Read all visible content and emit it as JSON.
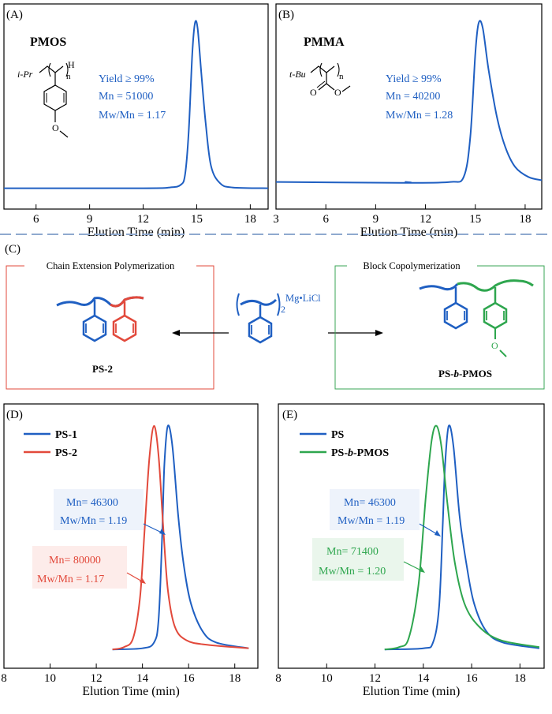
{
  "panel_labels": {
    "a": "(A)",
    "b": "(B)",
    "c": "(C)",
    "d": "(D)",
    "e": "(E)"
  },
  "colors": {
    "blue": "#1f5fc2",
    "red": "#e2493b",
    "green": "#2ea64e",
    "blue_box": "#eef3fb",
    "red_box": "#fdecea",
    "green_box": "#eaf6ec",
    "divider": "#8fa9cf",
    "red_frame": "#e2493b",
    "green_frame": "#3aa655"
  },
  "chart_data": [
    {
      "type": "line",
      "panel": "A",
      "xlabel": "Elution Time (min)",
      "xlim": [
        4.2,
        19
      ],
      "xticks": [
        6,
        9,
        12,
        15,
        18
      ],
      "ylim": [
        0,
        1
      ],
      "series": [
        {
          "color": "#1f5fc2",
          "points": [
            [
              4.2,
              0.02
            ],
            [
              12,
              0.02
            ],
            [
              13.5,
              0.025
            ],
            [
              14.1,
              0.04
            ],
            [
              14.35,
              0.1
            ],
            [
              14.55,
              0.35
            ],
            [
              14.75,
              0.8
            ],
            [
              14.9,
              0.98
            ],
            [
              15.05,
              0.95
            ],
            [
              15.25,
              0.7
            ],
            [
              15.5,
              0.4
            ],
            [
              15.8,
              0.15
            ],
            [
              16.3,
              0.05
            ],
            [
              17,
              0.025
            ],
            [
              19,
              0.02
            ]
          ]
        }
      ],
      "structure": {
        "name": "PMOS",
        "end_group": "i-Pr",
        "h": "H",
        "n": "n"
      },
      "annotation": {
        "lines": [
          "Yield ≥ 99%",
          "Mn = 51000",
          "Mw/Mn = 1.17"
        ]
      }
    },
    {
      "type": "line",
      "panel": "B",
      "xlabel": "Elution Time (min)",
      "xlim": [
        3,
        19
      ],
      "xticks": [
        3,
        6,
        9,
        12,
        15,
        18
      ],
      "ylim": [
        0,
        1
      ],
      "series": [
        {
          "color": "#1f5fc2",
          "points": [
            [
              3,
              0.03
            ],
            [
              10.5,
              0.025
            ],
            [
              10.8,
              0.03
            ],
            [
              11.1,
              0.025
            ],
            [
              13.5,
              0.03
            ],
            [
              14.3,
              0.06
            ],
            [
              14.7,
              0.3
            ],
            [
              15,
              0.8
            ],
            [
              15.2,
              0.98
            ],
            [
              15.45,
              0.95
            ],
            [
              15.8,
              0.7
            ],
            [
              16.3,
              0.42
            ],
            [
              16.8,
              0.24
            ],
            [
              17.4,
              0.12
            ],
            [
              18.2,
              0.06
            ],
            [
              19,
              0.04
            ]
          ]
        }
      ],
      "structure": {
        "name": "PMMA",
        "end_group": "t-Bu",
        "n": "n"
      },
      "annotation": {
        "lines": [
          "Yield ≥ 99%",
          "Mn = 40200",
          "Mw/Mn = 1.28"
        ]
      }
    },
    {
      "type": "line",
      "panel": "D",
      "xlabel": "Elution Time (min)",
      "xlim": [
        8,
        19
      ],
      "xticks": [
        8,
        10,
        12,
        14,
        16,
        18
      ],
      "ylim": [
        0,
        1
      ],
      "legend": "top-left",
      "series": [
        {
          "name": "PS-1",
          "color": "#1f5fc2",
          "points": [
            [
              12.7,
              0.02
            ],
            [
              14,
              0.025
            ],
            [
              14.5,
              0.05
            ],
            [
              14.7,
              0.15
            ],
            [
              14.85,
              0.5
            ],
            [
              14.95,
              0.82
            ],
            [
              15.1,
              0.99
            ],
            [
              15.3,
              0.9
            ],
            [
              15.55,
              0.6
            ],
            [
              15.8,
              0.38
            ],
            [
              16.1,
              0.22
            ],
            [
              16.6,
              0.1
            ],
            [
              17.2,
              0.05
            ],
            [
              18.6,
              0.025
            ]
          ]
        },
        {
          "name": "PS-2",
          "color": "#e2493b",
          "points": [
            [
              12.7,
              0.02
            ],
            [
              13.2,
              0.03
            ],
            [
              13.6,
              0.07
            ],
            [
              13.9,
              0.25
            ],
            [
              14.1,
              0.55
            ],
            [
              14.3,
              0.85
            ],
            [
              14.5,
              0.99
            ],
            [
              14.7,
              0.86
            ],
            [
              14.9,
              0.55
            ],
            [
              15.1,
              0.28
            ],
            [
              15.4,
              0.12
            ],
            [
              15.9,
              0.06
            ],
            [
              16.8,
              0.04
            ],
            [
              18.6,
              0.025
            ]
          ]
        }
      ],
      "annotations": [
        {
          "color": "blue",
          "lines": [
            "Mn= 46300",
            "Mw/Mn = 1.19"
          ]
        },
        {
          "color": "red",
          "lines": [
            "Mn= 80000",
            "Mw/Mn = 1.17"
          ]
        }
      ]
    },
    {
      "type": "line",
      "panel": "E",
      "xlabel": "Elution Time (min)",
      "xlim": [
        8,
        19
      ],
      "xticks": [
        8,
        10,
        12,
        14,
        16,
        18
      ],
      "ylim": [
        0,
        1
      ],
      "legend": "top-left",
      "series": [
        {
          "name": "PS",
          "color": "#1f5fc2",
          "points": [
            [
              12.4,
              0.02
            ],
            [
              14,
              0.025
            ],
            [
              14.4,
              0.05
            ],
            [
              14.65,
              0.2
            ],
            [
              14.8,
              0.55
            ],
            [
              14.9,
              0.82
            ],
            [
              15.05,
              0.99
            ],
            [
              15.25,
              0.9
            ],
            [
              15.5,
              0.6
            ],
            [
              15.8,
              0.38
            ],
            [
              16.1,
              0.22
            ],
            [
              16.6,
              0.1
            ],
            [
              17.3,
              0.05
            ],
            [
              18.8,
              0.025
            ]
          ]
        },
        {
          "name": "PS-b-PMOS",
          "color": "#2ea64e",
          "points": [
            [
              12.4,
              0.02
            ],
            [
              13,
              0.03
            ],
            [
              13.4,
              0.07
            ],
            [
              13.8,
              0.3
            ],
            [
              14.1,
              0.68
            ],
            [
              14.35,
              0.93
            ],
            [
              14.55,
              0.99
            ],
            [
              14.75,
              0.9
            ],
            [
              15,
              0.65
            ],
            [
              15.3,
              0.4
            ],
            [
              15.7,
              0.22
            ],
            [
              16.3,
              0.12
            ],
            [
              17.2,
              0.06
            ],
            [
              18.8,
              0.03
            ]
          ]
        }
      ],
      "annotations": [
        {
          "color": "blue",
          "lines": [
            "Mn= 46300",
            "Mw/Mn = 1.19"
          ]
        },
        {
          "color": "green",
          "lines": [
            "Mn= 71400",
            "Mw/Mn = 1.20"
          ]
        }
      ]
    }
  ],
  "scheme": {
    "left_box_title": "Chain Extension Polymerization",
    "right_box_title": "Block Copolymerization",
    "reagent": "Mg•LiCl",
    "reagent_subscript": "2",
    "left_product": "PS-2",
    "right_product": "PS-b-PMOS"
  }
}
